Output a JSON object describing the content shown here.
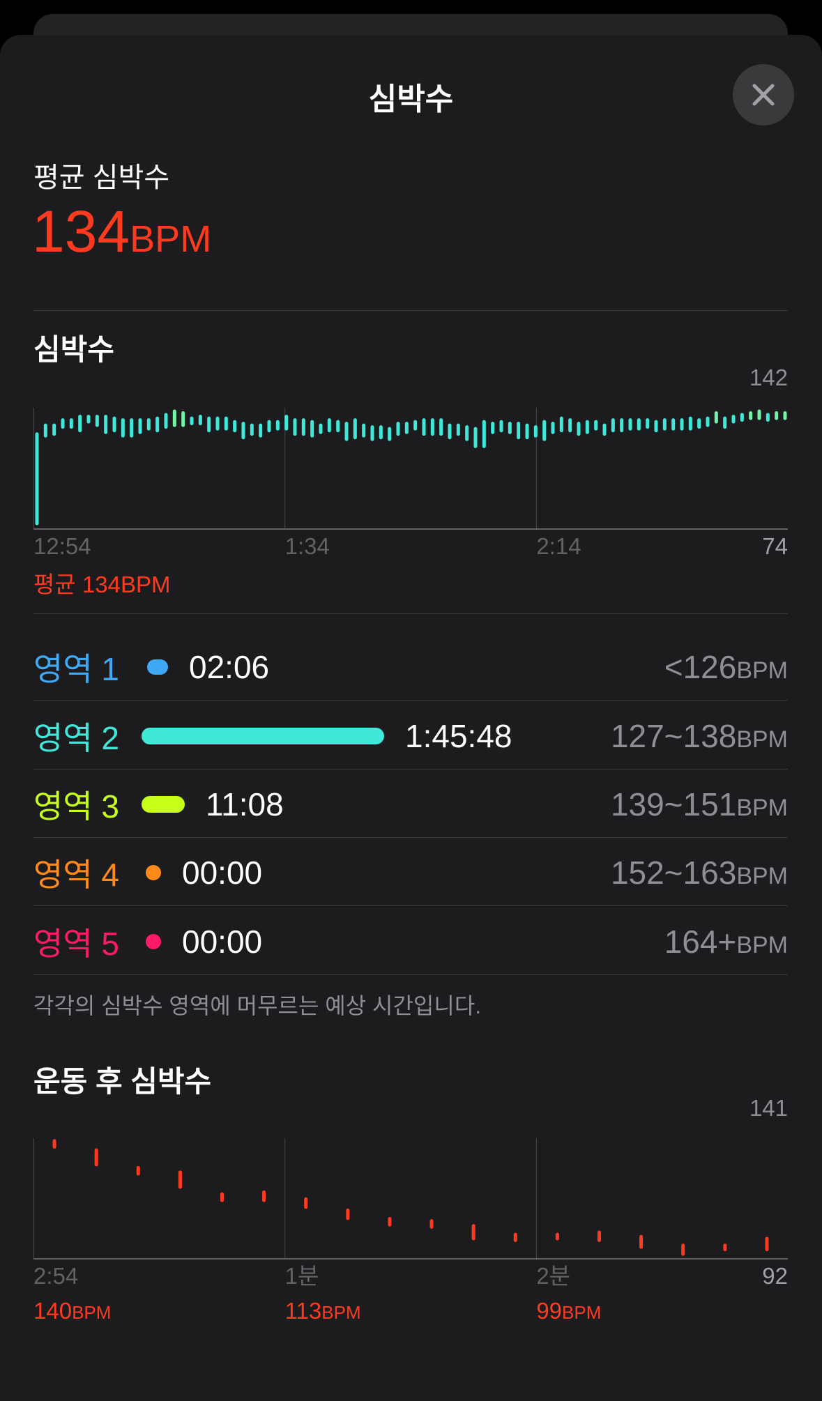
{
  "header": {
    "title": "심박수",
    "close_icon": "close-icon"
  },
  "summary": {
    "label": "평균 심박수",
    "value": "134",
    "unit": "BPM",
    "color": "#ff3b1f"
  },
  "hr_section": {
    "title": "심박수",
    "avg_label": "평균 134BPM"
  },
  "zones": [
    {
      "label": "영역 1",
      "time": "02:06",
      "range": "<126",
      "unit": "BPM",
      "color": "#3fa9f5",
      "share": 0.0
    },
    {
      "label": "영역 2",
      "time": "1:45:48",
      "range": "127~138",
      "unit": "BPM",
      "color": "#40e8da",
      "share": 1.0
    },
    {
      "label": "영역 3",
      "time": "11:08",
      "range": "139~151",
      "unit": "BPM",
      "color": "#c6ff1a",
      "share": 0.1
    },
    {
      "label": "영역 4",
      "time": "00:00",
      "range": "152~163",
      "unit": "BPM",
      "color": "#ff8a1a",
      "share": 0.0
    },
    {
      "label": "영역 5",
      "time": "00:00",
      "range": "164+",
      "unit": "BPM",
      "color": "#ff1a66",
      "share": 0.0
    }
  ],
  "zones_note": "각각의 심박수 영역에 머무르는 예상 시간입니다.",
  "recovery_section": {
    "title": "운동 후 심박수"
  },
  "chart_data": [
    {
      "type": "bar",
      "title": "심박수",
      "ylim": [
        74,
        142
      ],
      "y_labels": {
        "max": "142",
        "min": "74"
      },
      "x_tick_labels": [
        "12:54",
        "1:34",
        "2:14"
      ],
      "grid": true,
      "ranges": [
        [
          76,
          127
        ],
        [
          126,
          132
        ],
        [
          127,
          132
        ],
        [
          131,
          135
        ],
        [
          131,
          135
        ],
        [
          129,
          137
        ],
        [
          134,
          137
        ],
        [
          132,
          137
        ],
        [
          128,
          137
        ],
        [
          129,
          136
        ],
        [
          126,
          135
        ],
        [
          126,
          135
        ],
        [
          128,
          135
        ],
        [
          130,
          135
        ],
        [
          129,
          136
        ],
        [
          131,
          138
        ],
        [
          132,
          140
        ],
        [
          132,
          139
        ],
        [
          133,
          136
        ],
        [
          133,
          137
        ],
        [
          129,
          136
        ],
        [
          130,
          136
        ],
        [
          130,
          136
        ],
        [
          129,
          134
        ],
        [
          125,
          133
        ],
        [
          127,
          132
        ],
        [
          126,
          132
        ],
        [
          129,
          134
        ],
        [
          130,
          134
        ],
        [
          130,
          137
        ],
        [
          127,
          135
        ],
        [
          127,
          135
        ],
        [
          126,
          134
        ],
        [
          128,
          132
        ],
        [
          129,
          135
        ],
        [
          129,
          134
        ],
        [
          124,
          133
        ],
        [
          125,
          135
        ],
        [
          126,
          132
        ],
        [
          124,
          131
        ],
        [
          125,
          131
        ],
        [
          124,
          130
        ],
        [
          127,
          133
        ],
        [
          128,
          133
        ],
        [
          130,
          134
        ],
        [
          127,
          135
        ],
        [
          127,
          135
        ],
        [
          127,
          135
        ],
        [
          125,
          132
        ],
        [
          127,
          132
        ],
        [
          124,
          131
        ],
        [
          120,
          130
        ],
        [
          120,
          134
        ],
        [
          128,
          133
        ],
        [
          129,
          134
        ],
        [
          128,
          133
        ],
        [
          125,
          133
        ],
        [
          125,
          132
        ],
        [
          126,
          131
        ],
        [
          124,
          134
        ],
        [
          128,
          133
        ],
        [
          129,
          136
        ],
        [
          129,
          135
        ],
        [
          127,
          133
        ],
        [
          128,
          134
        ],
        [
          130,
          134
        ],
        [
          127,
          132
        ],
        [
          129,
          135
        ],
        [
          129,
          135
        ],
        [
          130,
          135
        ],
        [
          130,
          135
        ],
        [
          131,
          135
        ],
        [
          129,
          134
        ],
        [
          130,
          135
        ],
        [
          130,
          135
        ],
        [
          130,
          135
        ],
        [
          130,
          136
        ],
        [
          131,
          135
        ],
        [
          132,
          136
        ],
        [
          134,
          139
        ],
        [
          131,
          136
        ],
        [
          134,
          137
        ],
        [
          135,
          138
        ],
        [
          136,
          139
        ],
        [
          136,
          140
        ],
        [
          135,
          138
        ],
        [
          136,
          139
        ],
        [
          136,
          139
        ]
      ]
    },
    {
      "type": "bar",
      "title": "운동 후 심박수",
      "ylim": [
        92,
        141
      ],
      "y_labels": {
        "max": "141",
        "min": "92"
      },
      "x_tick_labels": [
        "2:54",
        "1분",
        "2분"
      ],
      "x_tick_values": [
        "140BPM",
        "113BPM",
        "99BPM"
      ],
      "grid": true,
      "color": "#ff3b1f",
      "ranges": [
        [
          137.4,
          139.9
        ],
        [
          130.1,
          136.1
        ],
        [
          126.3,
          128.8
        ],
        [
          120.8,
          126.9
        ],
        [
          115.3,
          117.9
        ],
        [
          115.3,
          118.7
        ],
        [
          112.5,
          115.8
        ],
        [
          107.9,
          111.2
        ],
        [
          105.2,
          107.7
        ],
        [
          104.3,
          106.8
        ],
        [
          99.5,
          104.8
        ],
        [
          98.8,
          101.2
        ],
        [
          99.5,
          101.2
        ],
        [
          98.8,
          102.1
        ],
        [
          96.0,
          100.3
        ],
        [
          93.1,
          96.7
        ],
        [
          95.0,
          96.7
        ],
        [
          95.0,
          99.5
        ]
      ]
    }
  ]
}
